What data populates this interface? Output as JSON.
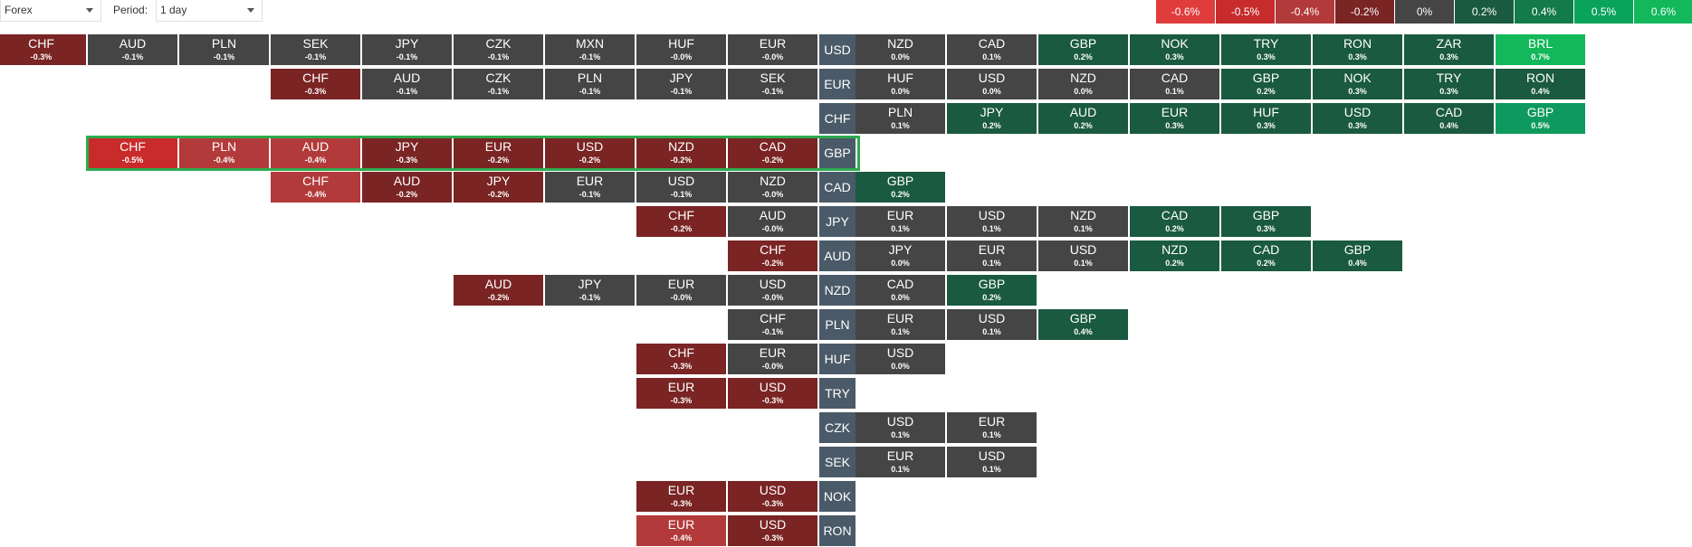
{
  "controls": {
    "market_select": "Forex",
    "period_label": "Period:",
    "period_select": "1 day"
  },
  "legend": [
    {
      "label": "-0.6%",
      "color": "#e03c3c"
    },
    {
      "label": "-0.5%",
      "color": "#c72b2b"
    },
    {
      "label": "-0.4%",
      "color": "#b33a3a"
    },
    {
      "label": "-0.2%",
      "color": "#7a2424"
    },
    {
      "label": "0%",
      "color": "#454545"
    },
    {
      "label": "0.2%",
      "color": "#1a5a40"
    },
    {
      "label": "0.4%",
      "color": "#137a4a"
    },
    {
      "label": "0.5%",
      "color": "#0aa35a"
    },
    {
      "label": "0.6%",
      "color": "#12b85a"
    }
  ],
  "rows": [
    {
      "base": "USD",
      "left": [
        [
          "CHF",
          "-0.3%"
        ],
        [
          "AUD",
          "-0.1%"
        ],
        [
          "PLN",
          "-0.1%"
        ],
        [
          "SEK",
          "-0.1%"
        ],
        [
          "JPY",
          "-0.1%"
        ],
        [
          "CZK",
          "-0.1%"
        ],
        [
          "MXN",
          "-0.1%"
        ],
        [
          "HUF",
          "-0.0%"
        ],
        [
          "EUR",
          "-0.0%"
        ]
      ],
      "right": [
        [
          "NZD",
          "0.0%"
        ],
        [
          "CAD",
          "0.1%"
        ],
        [
          "GBP",
          "0.2%"
        ],
        [
          "NOK",
          "0.3%"
        ],
        [
          "TRY",
          "0.3%"
        ],
        [
          "RON",
          "0.3%"
        ],
        [
          "ZAR",
          "0.3%"
        ],
        [
          "BRL",
          "0.7%"
        ]
      ]
    },
    {
      "base": "EUR",
      "left": [
        [
          "CHF",
          "-0.3%"
        ],
        [
          "AUD",
          "-0.1%"
        ],
        [
          "CZK",
          "-0.1%"
        ],
        [
          "PLN",
          "-0.1%"
        ],
        [
          "JPY",
          "-0.1%"
        ],
        [
          "SEK",
          "-0.1%"
        ]
      ],
      "right": [
        [
          "HUF",
          "0.0%"
        ],
        [
          "USD",
          "0.0%"
        ],
        [
          "NZD",
          "0.0%"
        ],
        [
          "CAD",
          "0.1%"
        ],
        [
          "GBP",
          "0.2%"
        ],
        [
          "NOK",
          "0.3%"
        ],
        [
          "TRY",
          "0.3%"
        ],
        [
          "RON",
          "0.4%"
        ]
      ]
    },
    {
      "base": "CHF",
      "left": [],
      "right": [
        [
          "PLN",
          "0.1%"
        ],
        [
          "JPY",
          "0.2%"
        ],
        [
          "AUD",
          "0.2%"
        ],
        [
          "EUR",
          "0.3%"
        ],
        [
          "HUF",
          "0.3%"
        ],
        [
          "USD",
          "0.3%"
        ],
        [
          "CAD",
          "0.4%"
        ],
        [
          "GBP",
          "0.5%"
        ]
      ]
    },
    {
      "base": "GBP",
      "left": [
        [
          "CHF",
          "-0.5%"
        ],
        [
          "PLN",
          "-0.4%"
        ],
        [
          "AUD",
          "-0.4%"
        ],
        [
          "JPY",
          "-0.3%"
        ],
        [
          "EUR",
          "-0.2%"
        ],
        [
          "USD",
          "-0.2%"
        ],
        [
          "NZD",
          "-0.2%"
        ],
        [
          "CAD",
          "-0.2%"
        ]
      ],
      "right": []
    },
    {
      "base": "CAD",
      "left": [
        [
          "CHF",
          "-0.4%"
        ],
        [
          "AUD",
          "-0.2%"
        ],
        [
          "JPY",
          "-0.2%"
        ],
        [
          "EUR",
          "-0.1%"
        ],
        [
          "USD",
          "-0.1%"
        ],
        [
          "NZD",
          "-0.0%"
        ]
      ],
      "right": [
        [
          "GBP",
          "0.2%"
        ]
      ]
    },
    {
      "base": "JPY",
      "left": [
        [
          "CHF",
          "-0.2%"
        ],
        [
          "AUD",
          "-0.0%"
        ]
      ],
      "right": [
        [
          "EUR",
          "0.1%"
        ],
        [
          "USD",
          "0.1%"
        ],
        [
          "NZD",
          "0.1%"
        ],
        [
          "CAD",
          "0.2%"
        ],
        [
          "GBP",
          "0.3%"
        ]
      ]
    },
    {
      "base": "AUD",
      "left": [
        [
          "CHF",
          "-0.2%"
        ]
      ],
      "right": [
        [
          "JPY",
          "0.0%"
        ],
        [
          "EUR",
          "0.1%"
        ],
        [
          "USD",
          "0.1%"
        ],
        [
          "NZD",
          "0.2%"
        ],
        [
          "CAD",
          "0.2%"
        ],
        [
          "GBP",
          "0.4%"
        ]
      ]
    },
    {
      "base": "NZD",
      "left": [
        [
          "AUD",
          "-0.2%"
        ],
        [
          "JPY",
          "-0.1%"
        ],
        [
          "EUR",
          "-0.0%"
        ],
        [
          "USD",
          "-0.0%"
        ]
      ],
      "right": [
        [
          "CAD",
          "0.0%"
        ],
        [
          "GBP",
          "0.2%"
        ]
      ]
    },
    {
      "base": "PLN",
      "left": [
        [
          "CHF",
          "-0.1%"
        ]
      ],
      "right": [
        [
          "EUR",
          "0.1%"
        ],
        [
          "USD",
          "0.1%"
        ],
        [
          "GBP",
          "0.4%"
        ]
      ]
    },
    {
      "base": "HUF",
      "left": [
        [
          "CHF",
          "-0.3%"
        ],
        [
          "EUR",
          "-0.0%"
        ]
      ],
      "right": [
        [
          "USD",
          "0.0%"
        ]
      ]
    },
    {
      "base": "TRY",
      "left": [
        [
          "EUR",
          "-0.3%"
        ],
        [
          "USD",
          "-0.3%"
        ]
      ],
      "right": []
    },
    {
      "base": "CZK",
      "left": [],
      "right": [
        [
          "USD",
          "0.1%"
        ],
        [
          "EUR",
          "0.1%"
        ]
      ]
    },
    {
      "base": "SEK",
      "left": [],
      "right": [
        [
          "EUR",
          "0.1%"
        ],
        [
          "USD",
          "0.1%"
        ]
      ]
    },
    {
      "base": "NOK",
      "left": [
        [
          "EUR",
          "-0.3%"
        ],
        [
          "USD",
          "-0.3%"
        ]
      ],
      "right": []
    },
    {
      "base": "RON",
      "left": [
        [
          "EUR",
          "-0.4%"
        ],
        [
          "USD",
          "-0.3%"
        ]
      ],
      "right": []
    }
  ],
  "highlighted_row": "GBP"
}
